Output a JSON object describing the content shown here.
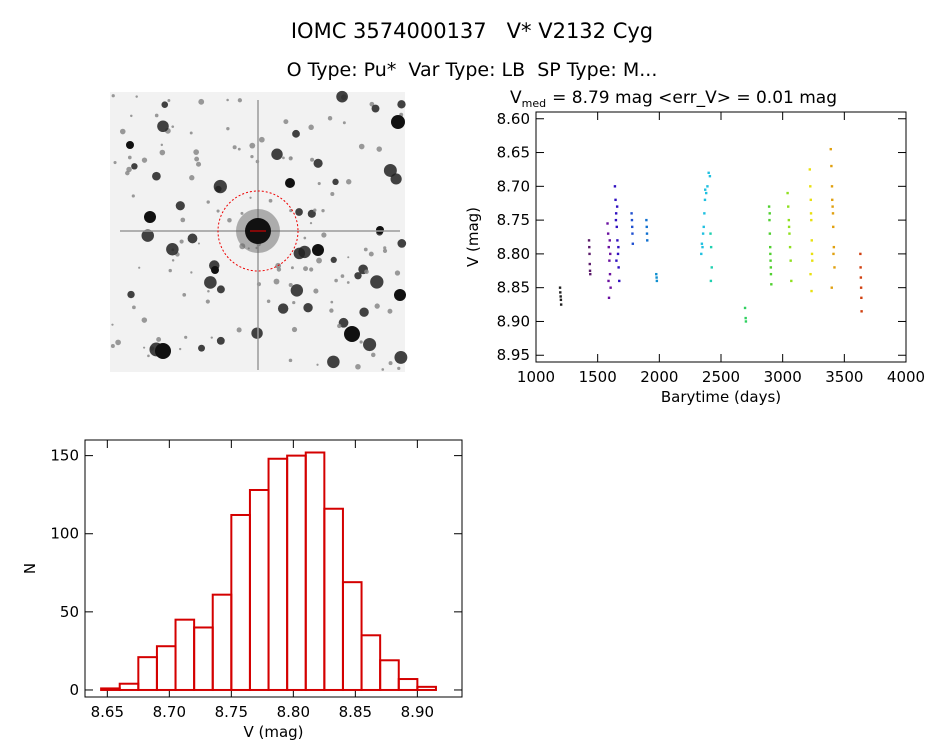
{
  "header": {
    "title": "IOMC 3574000137   V* V2132 Cyg",
    "subtitle": "O Type: Pu*  Var Type: LB  SP Type: M..."
  },
  "chart_data": [
    {
      "type": "scatter",
      "title": "V",
      "title_subscript": "med",
      "title_rest": "= 8.79 mag <err_V> = 0.01 mag",
      "x_label": "Barytime (days)",
      "y_label": "V (mag)",
      "xlim": [
        1000,
        4000
      ],
      "xticks": [
        1000,
        1500,
        2000,
        2500,
        3000,
        3500,
        4000
      ],
      "ylim": [
        8.96,
        8.59
      ],
      "yticks": [
        {
          "value": 8.6,
          "label": "8.60"
        },
        {
          "value": 8.65,
          "label": "8.65"
        },
        {
          "value": 8.7,
          "label": "8.70"
        },
        {
          "value": 8.75,
          "label": "8.75"
        },
        {
          "value": 8.8,
          "label": "8.80"
        },
        {
          "value": 8.85,
          "label": "8.85"
        },
        {
          "value": 8.9,
          "label": "8.90"
        },
        {
          "value": 8.95,
          "label": "8.95"
        }
      ],
      "series": [
        {
          "color": "#202020",
          "x": [
            1195,
            1197,
            1200,
            1202,
            1204
          ],
          "values": [
            8.85,
            8.857,
            8.863,
            8.868,
            8.875
          ]
        },
        {
          "color": "#5a1a6a",
          "x": [
            1430,
            1432,
            1434,
            1436,
            1438,
            1440
          ],
          "values": [
            8.78,
            8.79,
            8.8,
            8.815,
            8.825,
            8.83
          ]
        },
        {
          "color": "#6a10a0",
          "x": [
            1580,
            1585,
            1590,
            1595,
            1600,
            1605,
            1592,
            1598,
            1588,
            1602
          ],
          "values": [
            8.755,
            8.77,
            8.79,
            8.81,
            8.83,
            8.85,
            8.865,
            8.78,
            8.84,
            8.8
          ]
        },
        {
          "color": "#3010c0",
          "x": [
            1640,
            1645,
            1650,
            1655,
            1660,
            1665,
            1670,
            1675,
            1648,
            1658,
            1668,
            1652
          ],
          "values": [
            8.7,
            8.72,
            8.74,
            8.76,
            8.78,
            8.8,
            8.82,
            8.84,
            8.75,
            8.73,
            8.79,
            8.81
          ]
        },
        {
          "color": "#2050d0",
          "x": [
            1775,
            1778,
            1780,
            1782,
            1785
          ],
          "values": [
            8.74,
            8.75,
            8.76,
            8.77,
            8.785
          ]
        },
        {
          "color": "#1070d0",
          "x": [
            1895,
            1898,
            1900,
            1902
          ],
          "values": [
            8.75,
            8.76,
            8.77,
            8.78
          ]
        },
        {
          "color": "#1090d0",
          "x": [
            1975,
            1978,
            1980
          ],
          "values": [
            8.83,
            8.835,
            8.84
          ]
        },
        {
          "color": "#20c0e0",
          "x": [
            2340,
            2350,
            2355,
            2360,
            2365,
            2370,
            2380,
            2390,
            2400,
            2410,
            2345,
            2372
          ],
          "values": [
            8.8,
            8.79,
            8.77,
            8.76,
            8.74,
            8.72,
            8.71,
            8.7,
            8.68,
            8.685,
            8.785,
            8.705
          ]
        },
        {
          "color": "#20d0b0",
          "x": [
            2415,
            2420,
            2425,
            2418
          ],
          "values": [
            8.77,
            8.79,
            8.82,
            8.84
          ]
        },
        {
          "color": "#30d060",
          "x": [
            2695,
            2700,
            2702
          ],
          "values": [
            8.88,
            8.895,
            8.9
          ]
        },
        {
          "color": "#50d030",
          "x": [
            2890,
            2893,
            2896,
            2899,
            2902,
            2905,
            2908,
            2895,
            2900,
            2904
          ],
          "values": [
            8.73,
            8.75,
            8.77,
            8.79,
            8.81,
            8.83,
            8.845,
            8.74,
            8.8,
            8.82
          ]
        },
        {
          "color": "#90e020",
          "x": [
            3040,
            3045,
            3050,
            3055,
            3060,
            3065,
            3070,
            3052
          ],
          "values": [
            8.71,
            8.73,
            8.75,
            8.77,
            8.79,
            8.81,
            8.84,
            8.76
          ]
        },
        {
          "color": "#e8e010",
          "x": [
            3220,
            3224,
            3228,
            3232,
            3236,
            3240,
            3226,
            3234,
            3230,
            3238
          ],
          "values": [
            8.675,
            8.7,
            8.72,
            8.75,
            8.78,
            8.81,
            8.83,
            8.855,
            8.74,
            8.8
          ]
        },
        {
          "color": "#e0a010",
          "x": [
            3390,
            3395,
            3400,
            3405,
            3410,
            3415,
            3420,
            3398,
            3408,
            3412,
            3402
          ],
          "values": [
            8.645,
            8.67,
            8.7,
            8.73,
            8.76,
            8.79,
            8.82,
            8.85,
            8.74,
            8.8,
            8.72
          ]
        },
        {
          "color": "#d04010",
          "x": [
            3630,
            3632,
            3634,
            3636,
            3638,
            3640
          ],
          "values": [
            8.8,
            8.82,
            8.835,
            8.85,
            8.865,
            8.885
          ]
        }
      ]
    },
    {
      "type": "histogram",
      "x_label": "V (mag)",
      "y_label": "N",
      "color": "#d40000",
      "bins": [
        8.645,
        8.66,
        8.675,
        8.69,
        8.705,
        8.72,
        8.735,
        8.75,
        8.765,
        8.78,
        8.795,
        8.81,
        8.825,
        8.84,
        8.855,
        8.87,
        8.885,
        8.9,
        8.915
      ],
      "values": [
        1,
        4,
        21,
        28,
        45,
        40,
        61,
        112,
        128,
        148,
        150,
        152,
        116,
        69,
        35,
        19,
        7,
        2
      ],
      "xlim": [
        8.632,
        8.936
      ],
      "xticks": [
        {
          "value": 8.65,
          "label": "8.65"
        },
        {
          "value": 8.7,
          "label": "8.70"
        },
        {
          "value": 8.75,
          "label": "8.75"
        },
        {
          "value": 8.8,
          "label": "8.80"
        },
        {
          "value": 8.85,
          "label": "8.85"
        },
        {
          "value": 8.9,
          "label": "8.90"
        }
      ],
      "ylim": [
        -4.5,
        160
      ],
      "yticks": [
        0,
        50,
        100,
        150
      ]
    }
  ]
}
